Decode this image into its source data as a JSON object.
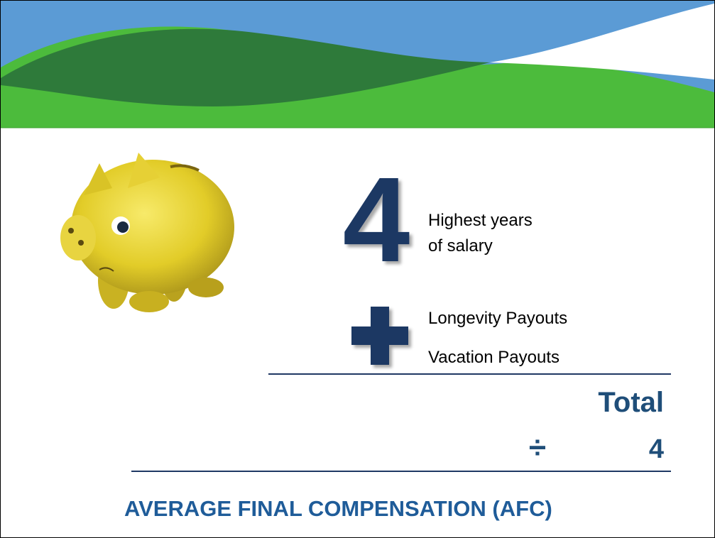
{
  "slide": {
    "big_number": "4",
    "highest_lines": [
      "Highest years",
      "of salary"
    ],
    "items": [
      "Longevity Payouts",
      "Vacation Payouts"
    ],
    "total": "Total",
    "divide_symbol": "÷",
    "divisor": "4",
    "result": "AVERAGE FINAL COMPENSATION (AFC)"
  }
}
